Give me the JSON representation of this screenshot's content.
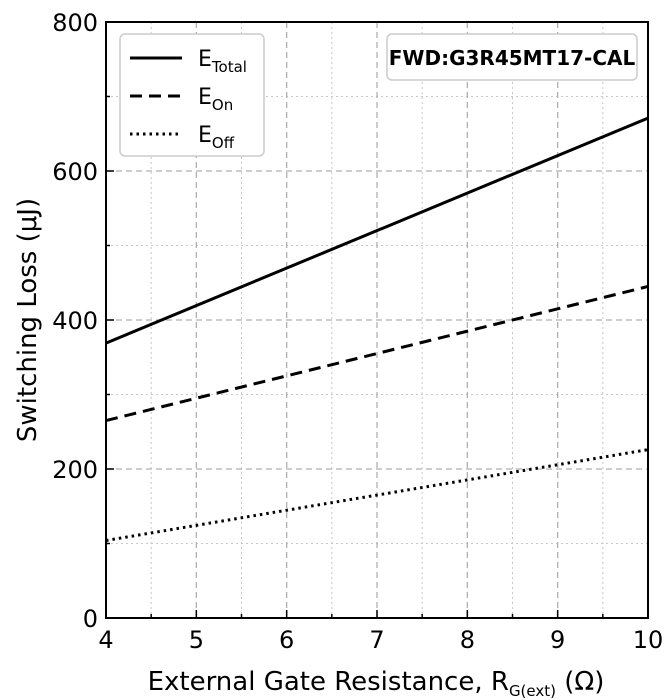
{
  "chart_data": {
    "type": "line",
    "xlabel": "External Gate Resistance, R",
    "xlabel_sub": "G(ext)",
    "xlabel_unit": " (Ω)",
    "ylabel": "Switching Loss (μJ)",
    "xlim": [
      4,
      10
    ],
    "ylim": [
      0,
      800
    ],
    "x_ticks": [
      "4",
      "5",
      "6",
      "7",
      "8",
      "9",
      "10"
    ],
    "y_ticks": [
      "0",
      "200",
      "400",
      "600",
      "800"
    ],
    "grid": "on (major dashed, minor dotted)",
    "legend_placement": "top-left",
    "annotation": "FWD:G3R45MT17-CAL",
    "series": [
      {
        "name": "E",
        "name_sub": "Total",
        "style": "solid",
        "x": [
          4,
          10
        ],
        "y": [
          369,
          671
        ]
      },
      {
        "name": "E",
        "name_sub": "On",
        "style": "dashed",
        "x": [
          4,
          10
        ],
        "y": [
          265,
          445
        ]
      },
      {
        "name": "E",
        "name_sub": "Off",
        "style": "dotted",
        "x": [
          4,
          10
        ],
        "y": [
          104,
          226
        ]
      }
    ]
  }
}
